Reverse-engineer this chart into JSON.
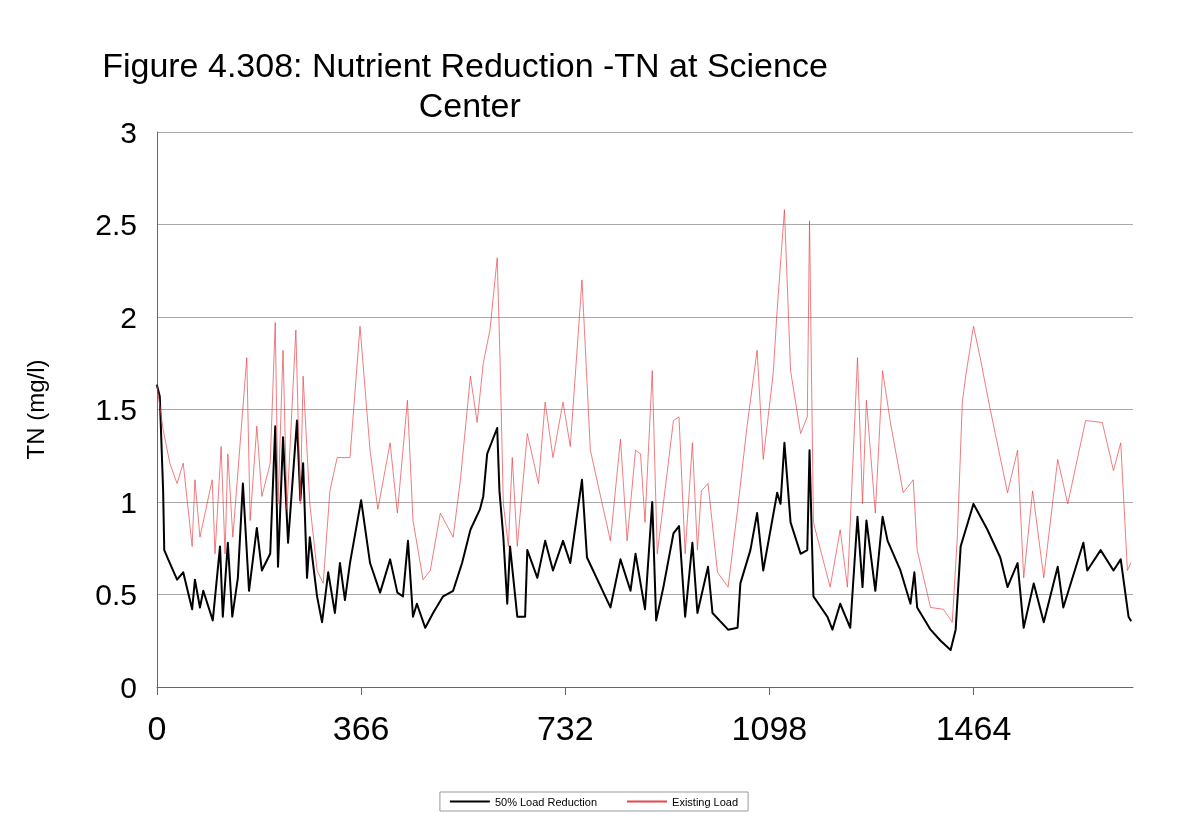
{
  "chart_data": {
    "type": "line",
    "title": "Figure 4.308: Nutrient Reduction -TN at Science Center",
    "ylabel": "TN (mg/l)",
    "xlim": [
      0,
      1750
    ],
    "xticks": [
      0,
      366,
      732,
      1098,
      1464
    ],
    "ylim": [
      0,
      3
    ],
    "yticks": [
      0,
      0.5,
      1,
      1.5,
      2,
      2.5,
      3
    ],
    "grid": "y",
    "legend": "bottom",
    "marker": "none",
    "line_style": "solid",
    "series": [
      {
        "name": "50% Load Reduction",
        "color": "#000000",
        "x": [
          0,
          5,
          11,
          13,
          23,
          36,
          47,
          63,
          68,
          77,
          83,
          100,
          113,
          118,
          127,
          135,
          145,
          154,
          165,
          179,
          188,
          203,
          212,
          217,
          226,
          235,
          251,
          257,
          262,
          269,
          274,
          287,
          296,
          307,
          319,
          328,
          337,
          346,
          366,
          382,
          400,
          418,
          431,
          441,
          450,
          459,
          466,
          481,
          495,
          513,
          531,
          547,
          562,
          579,
          585,
          592,
          610,
          614,
          621,
          628,
          633,
          646,
          660,
          664,
          682,
          696,
          710,
          728,
          741,
          762,
          771,
          813,
          831,
          849,
          858,
          875,
          888,
          895,
          908,
          926,
          936,
          947,
          960,
          969,
          988,
          996,
          1024,
          1041,
          1046,
          1064,
          1076,
          1087,
          1112,
          1118,
          1125,
          1136,
          1154,
          1166,
          1170,
          1177,
          1202,
          1211,
          1225,
          1243,
          1256,
          1265,
          1272,
          1288,
          1301,
          1310,
          1333,
          1351,
          1358,
          1363,
          1387,
          1405,
          1423,
          1432,
          1441,
          1450,
          1464,
          1489,
          1512,
          1525,
          1543,
          1554,
          1572,
          1590,
          1615,
          1625,
          1661,
          1668,
          1692,
          1715,
          1728,
          1742,
          1746
        ],
        "values": [
          1.63,
          1.57,
          1.06,
          0.74,
          0.67,
          0.58,
          0.62,
          0.42,
          0.58,
          0.43,
          0.52,
          0.36,
          0.76,
          0.38,
          0.78,
          0.38,
          0.59,
          1.1,
          0.52,
          0.86,
          0.63,
          0.72,
          1.41,
          0.65,
          1.35,
          0.78,
          1.44,
          1.01,
          1.21,
          0.59,
          0.81,
          0.49,
          0.35,
          0.62,
          0.4,
          0.67,
          0.47,
          0.67,
          1.01,
          0.67,
          0.51,
          0.69,
          0.51,
          0.49,
          0.79,
          0.38,
          0.45,
          0.32,
          0.4,
          0.49,
          0.52,
          0.67,
          0.85,
          0.96,
          1.03,
          1.26,
          1.4,
          1.06,
          0.81,
          0.45,
          0.76,
          0.38,
          0.38,
          0.74,
          0.59,
          0.79,
          0.63,
          0.79,
          0.67,
          1.12,
          0.7,
          0.43,
          0.69,
          0.52,
          0.72,
          0.42,
          1.0,
          0.36,
          0.54,
          0.83,
          0.87,
          0.38,
          0.78,
          0.4,
          0.65,
          0.4,
          0.31,
          0.32,
          0.56,
          0.74,
          0.94,
          0.63,
          1.05,
          0.99,
          1.32,
          0.89,
          0.72,
          0.74,
          1.28,
          0.49,
          0.38,
          0.31,
          0.45,
          0.32,
          0.92,
          0.54,
          0.9,
          0.52,
          0.92,
          0.79,
          0.63,
          0.45,
          0.62,
          0.43,
          0.31,
          0.25,
          0.2,
          0.31,
          0.76,
          0.85,
          0.99,
          0.85,
          0.7,
          0.54,
          0.67,
          0.32,
          0.56,
          0.35,
          0.65,
          0.43,
          0.78,
          0.63,
          0.74,
          0.63,
          0.69,
          0.38,
          0.36
        ]
      },
      {
        "name": "Existing Load",
        "color": "#e8454a",
        "x": [
          0,
          11,
          23,
          36,
          47,
          63,
          68,
          77,
          99,
          104,
          115,
          122,
          127,
          136,
          161,
          167,
          179,
          188,
          203,
          212,
          217,
          226,
          233,
          249,
          257,
          262,
          274,
          287,
          298,
          310,
          323,
          346,
          364,
          382,
          396,
          418,
          431,
          449,
          459,
          477,
          490,
          508,
          531,
          544,
          562,
          574,
          585,
          597,
          610,
          615,
          621,
          630,
          637,
          646,
          664,
          684,
          696,
          710,
          728,
          741,
          762,
          777,
          813,
          831,
          843,
          858,
          867,
          875,
          888,
          897,
          926,
          936,
          947,
          960,
          969,
          976,
          988,
          1005,
          1024,
          1041,
          1058,
          1076,
          1087,
          1105,
          1112,
          1125,
          1136,
          1154,
          1166,
          1170,
          1177,
          1207,
          1225,
          1238,
          1256,
          1265,
          1272,
          1288,
          1301,
          1315,
          1338,
          1356,
          1363,
          1387,
          1410,
          1426,
          1435,
          1444,
          1450,
          1464,
          1476,
          1494,
          1512,
          1525,
          1543,
          1554,
          1570,
          1590,
          1615,
          1633,
          1665,
          1695,
          1715,
          1728,
          1740,
          1746
        ],
        "values": [
          1.63,
          1.39,
          1.21,
          1.1,
          1.21,
          0.76,
          1.12,
          0.81,
          1.12,
          0.72,
          1.3,
          0.72,
          1.26,
          0.81,
          1.78,
          0.9,
          1.41,
          1.03,
          1.21,
          1.97,
          0.99,
          1.82,
          0.96,
          1.93,
          0.99,
          1.68,
          0.99,
          0.63,
          0.56,
          1.06,
          1.24,
          1.24,
          1.95,
          1.28,
          0.96,
          1.32,
          0.94,
          1.55,
          0.9,
          0.58,
          0.63,
          0.94,
          0.81,
          1.12,
          1.68,
          1.43,
          1.75,
          1.93,
          2.32,
          1.78,
          0.99,
          0.76,
          1.24,
          0.76,
          1.37,
          1.1,
          1.54,
          1.24,
          1.54,
          1.3,
          2.2,
          1.28,
          0.79,
          1.34,
          0.79,
          1.28,
          1.26,
          0.89,
          1.71,
          0.72,
          1.44,
          1.46,
          0.72,
          1.32,
          0.74,
          1.06,
          1.1,
          0.62,
          0.54,
          0.96,
          1.41,
          1.82,
          1.23,
          1.7,
          2.04,
          2.58,
          1.71,
          1.37,
          1.46,
          2.52,
          0.89,
          0.54,
          0.85,
          0.54,
          1.78,
          0.99,
          1.55,
          0.94,
          1.71,
          1.43,
          1.05,
          1.12,
          0.74,
          0.43,
          0.42,
          0.35,
          0.81,
          1.54,
          1.68,
          1.95,
          1.78,
          1.5,
          1.24,
          1.05,
          1.28,
          0.59,
          1.06,
          0.59,
          1.23,
          0.99,
          1.44,
          1.43,
          1.17,
          1.32,
          0.63,
          0.67
        ]
      }
    ]
  }
}
